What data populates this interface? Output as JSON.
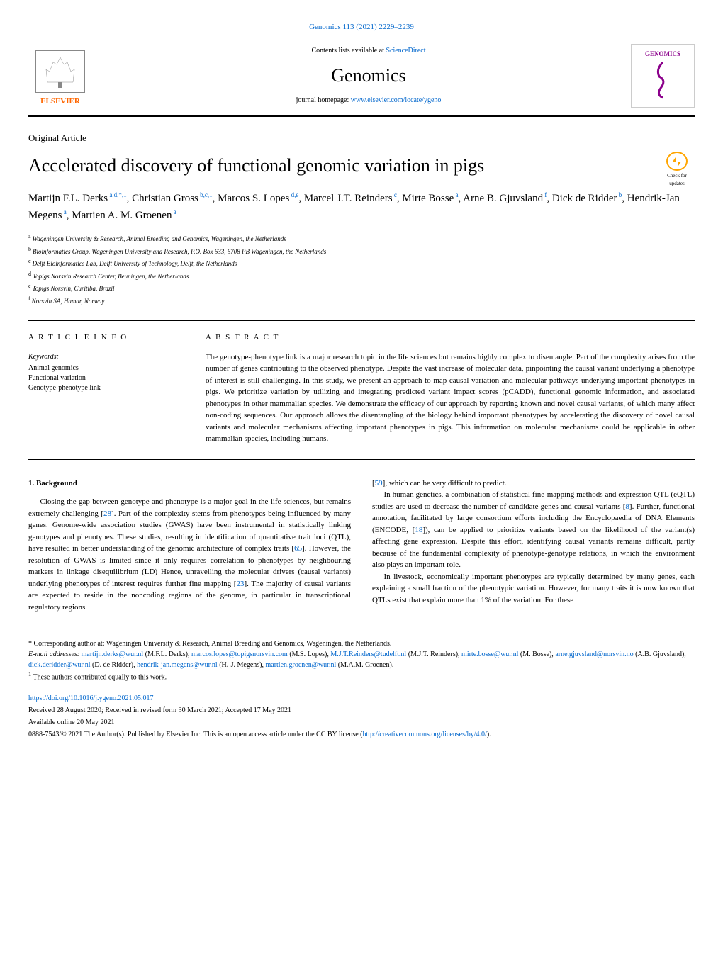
{
  "header": {
    "reference": "Genomics 113 (2021) 2229–2239",
    "contents_text": "Contents lists available at ",
    "contents_link": "ScienceDirect",
    "journal_title": "Genomics",
    "homepage_text": "journal homepage: ",
    "homepage_link": "www.elsevier.com/locate/ygeno",
    "elsevier": "ELSEVIER",
    "genomics_badge": "GENOMICS"
  },
  "article": {
    "type": "Original Article",
    "title": "Accelerated discovery of functional genomic variation in pigs",
    "check_updates": "Check for updates",
    "authors_html": "Martijn F.L. Derks",
    "authors": [
      {
        "name": "Martijn F.L. Derks",
        "sup": "a,d,*,1"
      },
      {
        "name": "Christian Gross",
        "sup": "b,c,1"
      },
      {
        "name": "Marcos S. Lopes",
        "sup": "d,e"
      },
      {
        "name": "Marcel J.T. Reinders",
        "sup": "c"
      },
      {
        "name": "Mirte Bosse",
        "sup": "a"
      },
      {
        "name": "Arne B. Gjuvsland",
        "sup": "f"
      },
      {
        "name": "Dick de Ridder",
        "sup": "b"
      },
      {
        "name": "Hendrik-Jan Megens",
        "sup": "a"
      },
      {
        "name": "Martien A. M. Groenen",
        "sup": "a"
      }
    ],
    "affiliations": [
      {
        "sup": "a",
        "text": "Wageningen University & Research, Animal Breeding and Genomics, Wageningen, the Netherlands"
      },
      {
        "sup": "b",
        "text": "Bioinformatics Group, Wageningen University and Research, P.O. Box 633, 6708 PB Wageningen, the Netherlands"
      },
      {
        "sup": "c",
        "text": "Delft Bioinformatics Lab, Delft University of Technology, Delft, the Netherlands"
      },
      {
        "sup": "d",
        "text": "Topigs Norsvin Research Center, Beuningen, the Netherlands"
      },
      {
        "sup": "e",
        "text": "Topigs Norsvin, Curitiba, Brazil"
      },
      {
        "sup": "f",
        "text": "Norsvin SA, Hamar, Norway"
      }
    ]
  },
  "info": {
    "heading": "A R T I C L E  I N F O",
    "keywords_label": "Keywords:",
    "keywords": [
      "Animal genomics",
      "Functional variation",
      "Genotype-phenotype link"
    ]
  },
  "abstract": {
    "heading": "A B S T R A C T",
    "text": "The genotype-phenotype link is a major research topic in the life sciences but remains highly complex to disentangle. Part of the complexity arises from the number of genes contributing to the observed phenotype. Despite the vast increase of molecular data, pinpointing the causal variant underlying a phenotype of interest is still challenging. In this study, we present an approach to map causal variation and molecular pathways underlying important phenotypes in pigs. We prioritize variation by utilizing and integrating predicted variant impact scores (pCADD), functional genomic information, and associated phenotypes in other mammalian species. We demonstrate the efficacy of our approach by reporting known and novel causal variants, of which many affect non-coding sequences. Our approach allows the disentangling of the biology behind important phenotypes by accelerating the discovery of novel causal variants and molecular mechanisms affecting important phenotypes in pigs. This information on molecular mechanisms could be applicable in other mammalian species, including humans."
  },
  "body": {
    "section1_heading": "1. Background",
    "col1_p1": "Closing the gap between genotype and phenotype is a major goal in the life sciences, but remains extremely challenging [28]. Part of the complexity stems from phenotypes being influenced by many genes. Genome-wide association studies (GWAS) have been instrumental in statistically linking genotypes and phenotypes. These studies, resulting in identification of quantitative trait loci (QTL), have resulted in better understanding of the genomic architecture of complex traits [65]. However, the resolution of GWAS is limited since it only requires correlation to phenotypes by neighbouring markers in linkage disequilibrium (LD) Hence, unravelling the molecular drivers (causal variants) underlying phenotypes of interest requires further fine mapping [23]. The majority of causal variants are expected to reside in the noncoding regions of the genome, in particular in transcriptional regulatory regions",
    "col2_p1": "[59], which can be very difficult to predict.",
    "col2_p2": "In human genetics, a combination of statistical fine-mapping methods and expression QTL (eQTL) studies are used to decrease the number of candidate genes and causal variants [8]. Further, functional annotation, facilitated by large consortium efforts including the Encyclopaedia of DNA Elements (ENCODE, [18]), can be applied to prioritize variants based on the likelihood of the variant(s) affecting gene expression. Despite this effort, identifying causal variants remains difficult, partly because of the fundamental complexity of phenotype-genotype relations, in which the environment also plays an important role.",
    "col2_p3": "In livestock, economically important phenotypes are typically determined by many genes, each explaining a small fraction of the phenotypic variation. However, for many traits it is now known that QTLs exist that explain more than 1% of the variation. For these"
  },
  "footer": {
    "corresponding": "* Corresponding author at: Wageningen University & Research, Animal Breeding and Genomics, Wageningen, the Netherlands.",
    "emails_label": "E-mail addresses: ",
    "emails": "martijn.derks@wur.nl (M.F.L. Derks), marcos.lopes@topigsnorsvin.com (M.S. Lopes), M.J.T.Reinders@tudelft.nl (M.J.T. Reinders), mirte.bosse@wur.nl (M. Bosse), arne.gjuvsland@norsvin.no (A.B. Gjuvsland), dick.deridder@wur.nl (D. de Ridder), hendrik-jan.megens@wur.nl (H.-J. Megens), martien.groenen@wur.nl (M.A.M. Groenen).",
    "equal_contrib": "1 These authors contributed equally to this work.",
    "doi": "https://doi.org/10.1016/j.ygeno.2021.05.017",
    "dates": "Received 28 August 2020; Received in revised form 30 March 2021; Accepted 17 May 2021",
    "available": "Available online 20 May 2021",
    "copyright": "0888-7543/© 2021 The Author(s). Published by Elsevier Inc. This is an open access article under the CC BY license (",
    "cc_link": "http://creativecommons.org/licenses/by/4.0/",
    "copyright_end": ")."
  }
}
